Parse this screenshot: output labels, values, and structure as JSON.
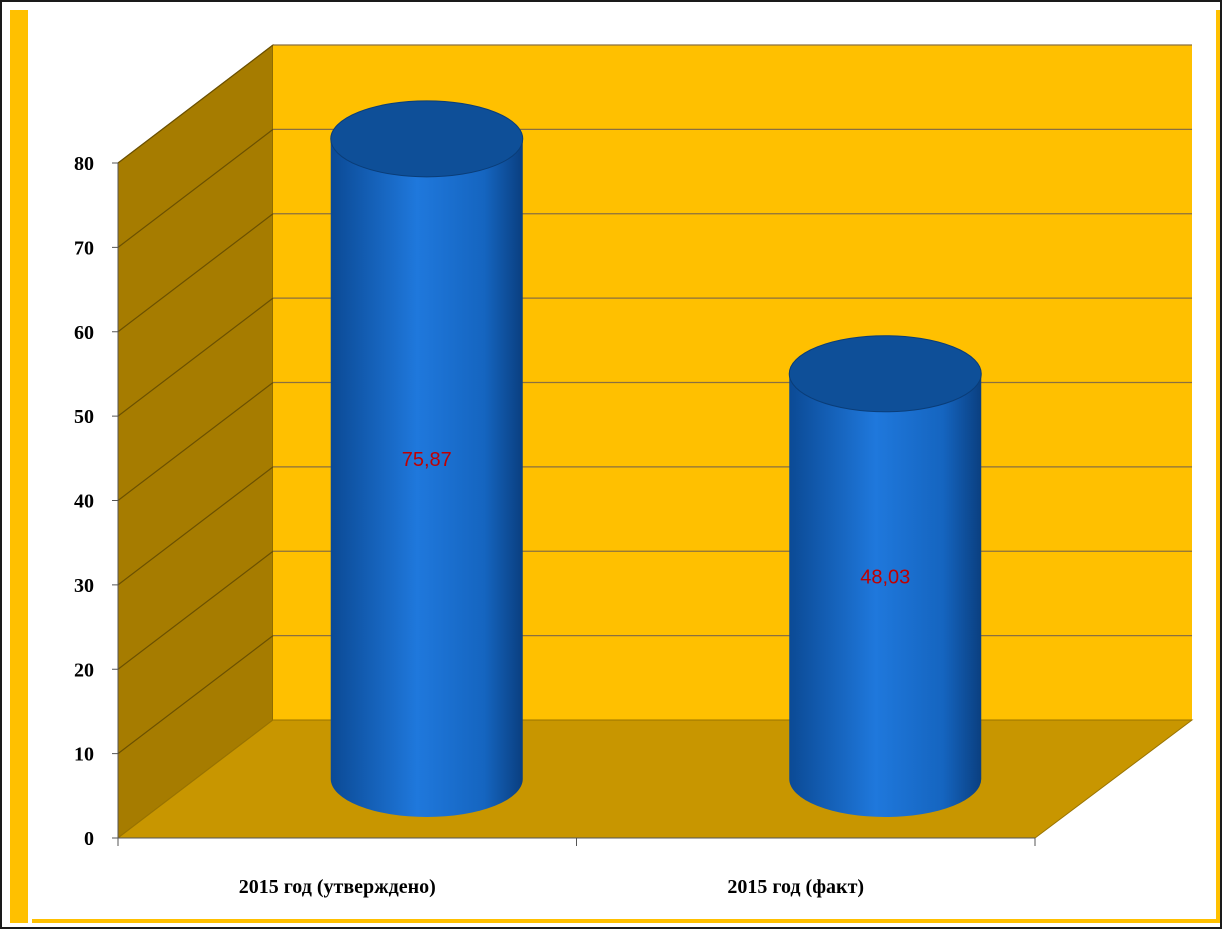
{
  "chart_data": {
    "type": "bar",
    "variant": "3d-cylinder",
    "categories": [
      "2015 год (утверждено)",
      "2015 год (факт)"
    ],
    "series": [
      {
        "values": [
          75.87,
          48.03
        ],
        "data_labels": [
          "75,87",
          "48,03"
        ]
      }
    ],
    "yticks": [
      "0",
      "10",
      "20",
      "30",
      "40",
      "50",
      "60",
      "70",
      "80"
    ],
    "ylim": [
      0,
      80
    ],
    "grid": true,
    "legend": "none",
    "colors": {
      "bar": "#1f6fd0",
      "bar_top": "#0e4f98",
      "back_wall": "#ffc000",
      "side_wall": "#a67c00",
      "floor": "#c89600",
      "data_label": "#c00000"
    }
  }
}
